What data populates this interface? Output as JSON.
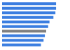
{
  "chart_data": {
    "type": "bar",
    "orientation": "horizontal",
    "categories": [
      null,
      null,
      null,
      null,
      null,
      null,
      null,
      null,
      null,
      null
    ],
    "values": [
      82,
      82,
      81,
      78,
      72,
      70,
      67,
      65,
      63,
      59
    ],
    "colors": [
      "#3a7de0",
      "#3a7de0",
      "#3a7de0",
      "#3a7de0",
      "#3a7de0",
      "#3a7de0",
      "#7f7f7f",
      "#3a7de0",
      "#3a7de0",
      "#3a7de0"
    ],
    "xlim": [
      0,
      100
    ],
    "xticks": [
      0,
      100
    ],
    "grid": false,
    "tick_labels": false
  }
}
